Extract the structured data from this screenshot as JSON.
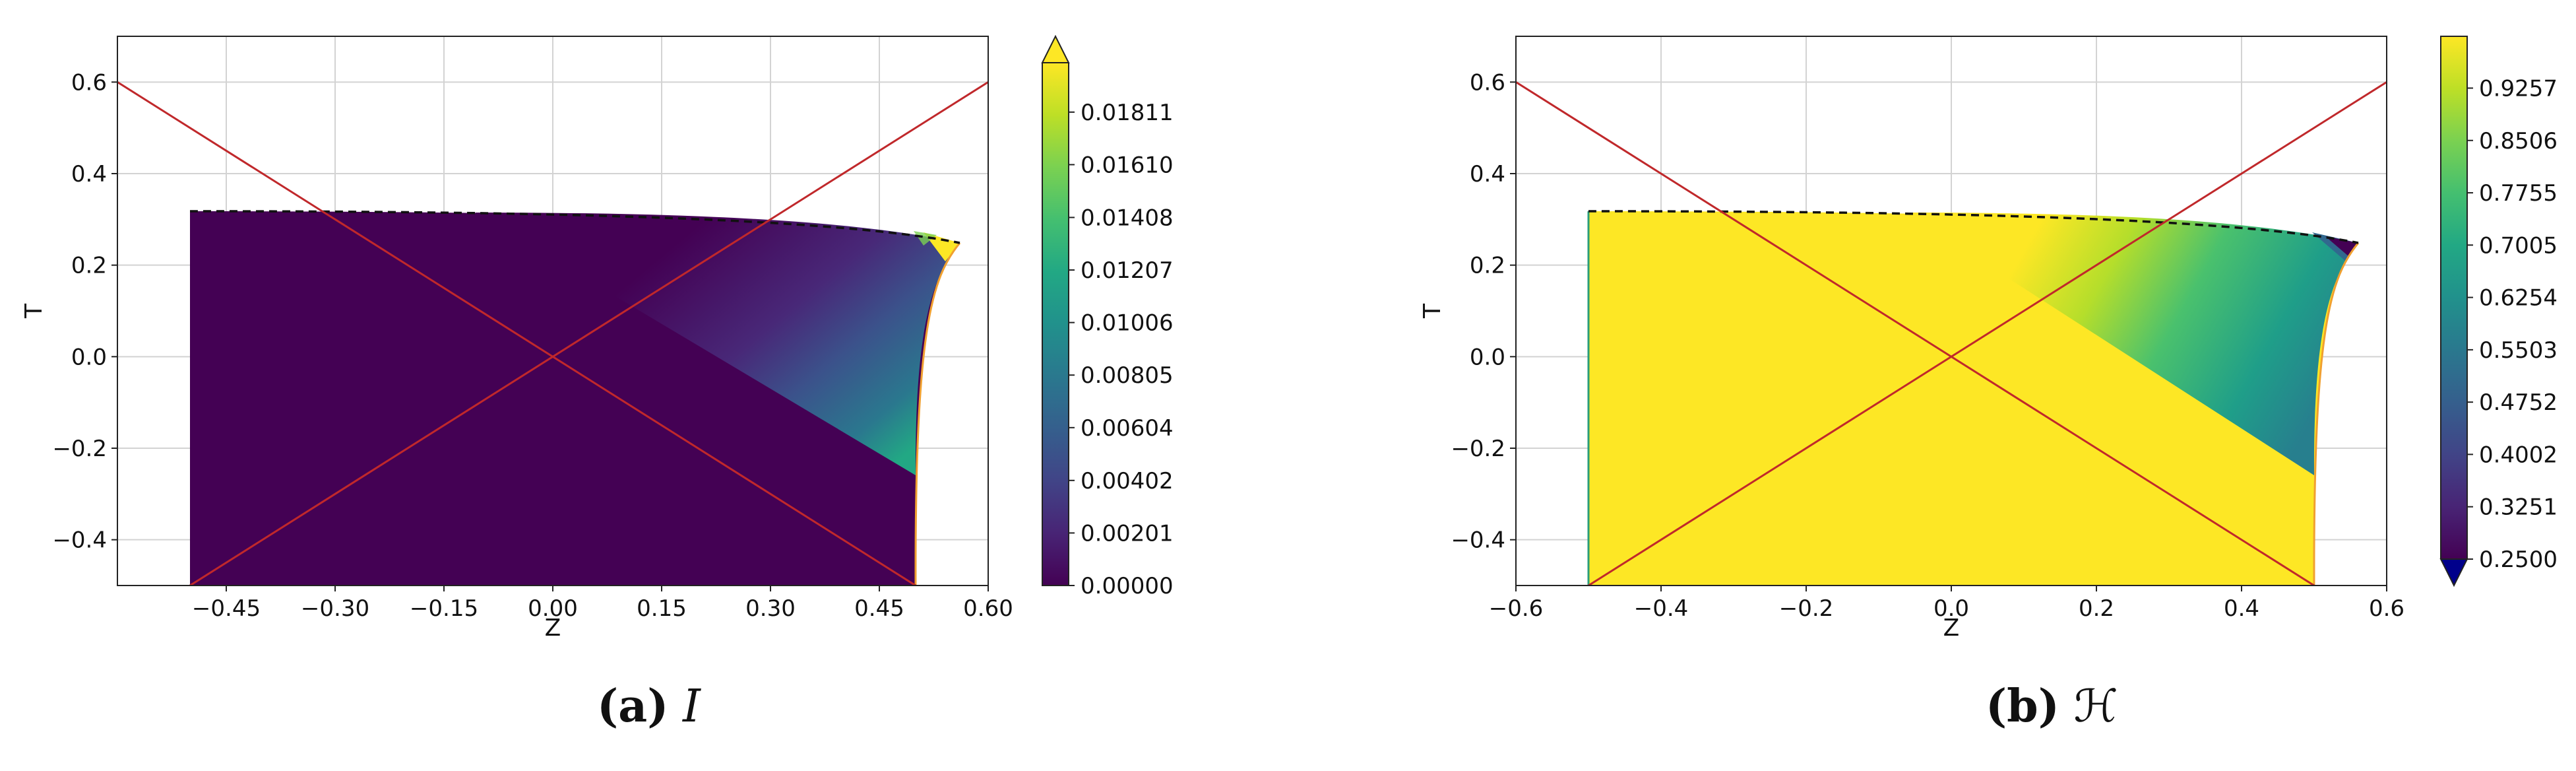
{
  "chart_data": [
    {
      "id": "a",
      "type": "heatmap",
      "xlabel": "Z",
      "ylabel": "T",
      "xlim": [
        -0.6,
        0.6
      ],
      "ylim": [
        -0.5,
        0.7
      ],
      "x_ticks": [
        -0.45,
        -0.3,
        -0.15,
        0.0,
        0.15,
        0.3,
        0.45,
        0.6
      ],
      "x_tick_labels": [
        "−0.45",
        "−0.30",
        "−0.15",
        "0.00",
        "0.15",
        "0.30",
        "0.45",
        "0.60"
      ],
      "y_ticks": [
        -0.4,
        -0.2,
        0.0,
        0.2,
        0.4,
        0.6
      ],
      "y_tick_labels": [
        "−0.4",
        "−0.2",
        "0.0",
        "0.2",
        "0.4",
        "0.6"
      ],
      "grid": true,
      "colormap": "viridis",
      "colorbar": {
        "min": 0.0,
        "max": 0.02,
        "ticks": [
          0.0,
          0.00201,
          0.00402,
          0.00604,
          0.00805,
          0.01006,
          0.01207,
          0.01408,
          0.0161,
          0.01811
        ],
        "tick_labels": [
          "0.00000",
          "0.00201",
          "0.00402",
          "0.00604",
          "0.00805",
          "0.01006",
          "0.01207",
          "0.01408",
          "0.01610",
          "0.01811"
        ],
        "extend": "max"
      },
      "domain": {
        "z_left": -0.5,
        "t_bottom": -0.5,
        "t_top_at_center": 0.315,
        "corner": [
          0.565,
          0.25
        ],
        "right_edge_bottom_z": 0.5
      },
      "light_cone_lines": [
        [
          [
            -0.6,
            0.6
          ],
          [
            0.6,
            -0.6
          ]
        ],
        [
          [
            -0.6,
            -0.6
          ],
          [
            0.6,
            0.6
          ]
        ]
      ]
    },
    {
      "id": "b",
      "type": "heatmap",
      "xlabel": "Z",
      "ylabel": "T",
      "xlim": [
        -0.6,
        0.6
      ],
      "ylim": [
        -0.5,
        0.7
      ],
      "x_ticks": [
        -0.6,
        -0.4,
        -0.2,
        0.0,
        0.2,
        0.4,
        0.6
      ],
      "x_tick_labels": [
        "−0.6",
        "−0.4",
        "−0.2",
        "0.0",
        "0.2",
        "0.4",
        "0.6"
      ],
      "y_ticks": [
        -0.4,
        -0.2,
        0.0,
        0.2,
        0.4,
        0.6
      ],
      "y_tick_labels": [
        "−0.4",
        "−0.2",
        "0.0",
        "0.2",
        "0.4",
        "0.6"
      ],
      "grid": true,
      "colormap": "viridis",
      "colorbar": {
        "min": 0.25,
        "max": 1.0,
        "ticks": [
          0.25,
          0.3251,
          0.4002,
          0.4752,
          0.5503,
          0.6254,
          0.7005,
          0.7755,
          0.8506,
          0.9257
        ],
        "tick_labels": [
          "0.2500",
          "0.3251",
          "0.4002",
          "0.4752",
          "0.5503",
          "0.6254",
          "0.7005",
          "0.7755",
          "0.8506",
          "0.9257"
        ],
        "extend": "min"
      },
      "domain": {
        "z_left": -0.5,
        "t_bottom": -0.5,
        "t_top_at_center": 0.315,
        "corner": [
          0.565,
          0.25
        ],
        "right_edge_bottom_z": 0.5
      },
      "light_cone_lines": [
        [
          [
            -0.6,
            0.6
          ],
          [
            0.6,
            -0.6
          ]
        ],
        [
          [
            -0.6,
            -0.6
          ],
          [
            0.6,
            0.6
          ]
        ]
      ]
    }
  ],
  "captions": {
    "a": {
      "label": "(a)",
      "symbol": "I"
    },
    "b": {
      "label": "(b)",
      "symbol": "ℋ"
    }
  }
}
